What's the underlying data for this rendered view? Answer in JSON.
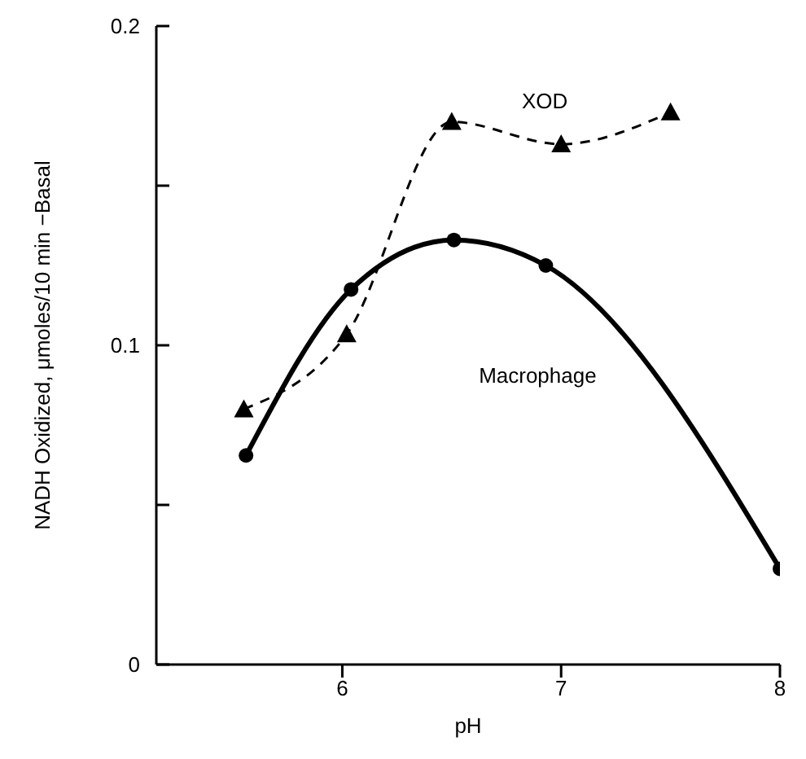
{
  "chart_data": {
    "type": "line",
    "xlabel": "pH",
    "ylabel": "NADH Oxidized, μmoles/10 min −Basal",
    "xlim": [
      5.15,
      8
    ],
    "xticks": [
      6,
      7,
      8
    ],
    "ylim": [
      0,
      0.2
    ],
    "yticks": [
      {
        "value": 0,
        "label": "0"
      },
      {
        "value": 0.05,
        "label": null
      },
      0.1,
      {
        "value": 0.15,
        "label": null
      },
      0.2
    ],
    "grid": false,
    "legend": false,
    "series": [
      {
        "name": "XOD",
        "color": "#000000",
        "marker": "triangle",
        "line_style": "dashed",
        "x": [
          5.55,
          6.02,
          6.5,
          7.0,
          7.5
        ],
        "values": [
          0.08,
          0.1035,
          0.17,
          0.163,
          0.173
        ]
      },
      {
        "name": "Macrophage",
        "color": "#000000",
        "marker": "circle",
        "line_style": "solid",
        "x": [
          5.56,
          6.04,
          6.51,
          6.93,
          8.0
        ],
        "values": [
          0.0655,
          0.1175,
          0.133,
          0.125,
          0.03
        ]
      }
    ]
  }
}
